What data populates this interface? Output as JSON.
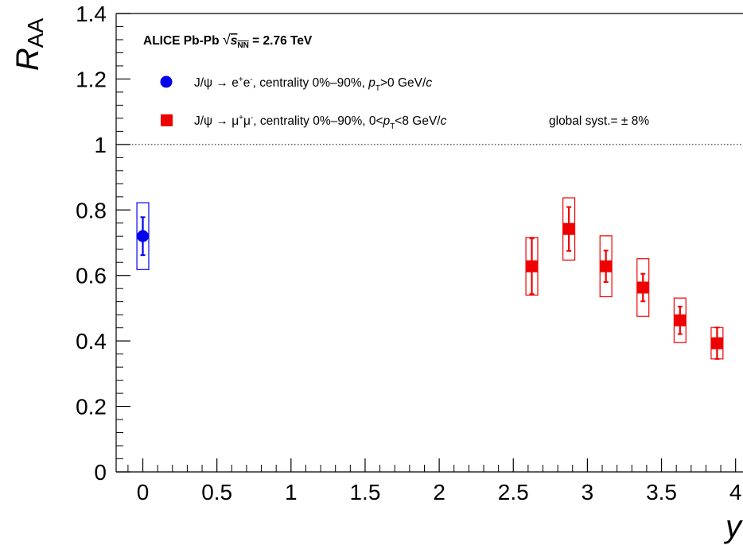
{
  "chart_data": {
    "type": "scatter",
    "xlim": [
      -0.18,
      4.05
    ],
    "ylim": [
      0,
      1.4
    ],
    "x_ticks": [
      0,
      0.5,
      1,
      1.5,
      2,
      2.5,
      3,
      3.5,
      4
    ],
    "x_tick_labels": [
      "0",
      "0.5",
      "1",
      "1.5",
      "2",
      "2.5",
      "3",
      "3.5",
      "4"
    ],
    "y_ticks": [
      0,
      0.2,
      0.4,
      0.6,
      0.8,
      1,
      1.2,
      1.4
    ],
    "y_tick_labels": [
      "0",
      "0.2",
      "0.4",
      "0.6",
      "0.8",
      "1",
      "1.2",
      "1.4"
    ],
    "xlabel": "y",
    "ylabel": {
      "main": "R",
      "sub": "AA"
    },
    "reference_line": 1.0,
    "grid": false,
    "legend_position": "top-left",
    "header": {
      "experiment": "ALICE Pb-Pb",
      "sqrt_symbol": "√",
      "s_symbol": "s",
      "s_sub": "NN",
      "energy": "= 2.76 TeV"
    },
    "series": [
      {
        "legend_parts": [
          {
            "t": "J/ψ → e",
            "k": "n"
          },
          {
            "t": "+",
            "k": "sup"
          },
          {
            "t": "e",
            "k": "n"
          },
          {
            "t": "-",
            "k": "sup"
          },
          {
            "t": ", centrality 0%–90%, ",
            "k": "n"
          },
          {
            "t": "p",
            "k": "it"
          },
          {
            "t": "T",
            "k": "sub"
          },
          {
            "t": ">0 GeV/",
            "k": "n"
          },
          {
            "t": "c",
            "k": "it"
          }
        ],
        "color": "#0000ee",
        "marker": "circle",
        "points": [
          {
            "x": 0.0,
            "y": 0.72,
            "stat": 0.058,
            "syst": 0.102,
            "xw": 0.04
          }
        ]
      },
      {
        "legend_parts": [
          {
            "t": "J/ψ → μ",
            "k": "n"
          },
          {
            "t": "+",
            "k": "sup"
          },
          {
            "t": "μ",
            "k": "n"
          },
          {
            "t": "-",
            "k": "sup"
          },
          {
            "t": ", centrality 0%–90%, 0<",
            "k": "n"
          },
          {
            "t": "p",
            "k": "it"
          },
          {
            "t": "T",
            "k": "sub"
          },
          {
            "t": "<8 GeV/",
            "k": "n"
          },
          {
            "t": "c",
            "k": "it"
          }
        ],
        "color": "#ee0000",
        "marker": "square",
        "points": [
          {
            "x": 2.625,
            "y": 0.628,
            "stat": 0.085,
            "syst": 0.088,
            "xw": 0.04
          },
          {
            "x": 2.875,
            "y": 0.742,
            "stat": 0.067,
            "syst": 0.095,
            "xw": 0.04
          },
          {
            "x": 3.125,
            "y": 0.628,
            "stat": 0.048,
            "syst": 0.093,
            "xw": 0.04
          },
          {
            "x": 3.375,
            "y": 0.563,
            "stat": 0.042,
            "syst": 0.088,
            "xw": 0.04
          },
          {
            "x": 3.625,
            "y": 0.463,
            "stat": 0.042,
            "syst": 0.068,
            "xw": 0.04
          },
          {
            "x": 3.875,
            "y": 0.393,
            "stat": 0.048,
            "syst": 0.048,
            "xw": 0.04
          }
        ]
      }
    ],
    "annotation": "global syst.= ± 8%"
  }
}
